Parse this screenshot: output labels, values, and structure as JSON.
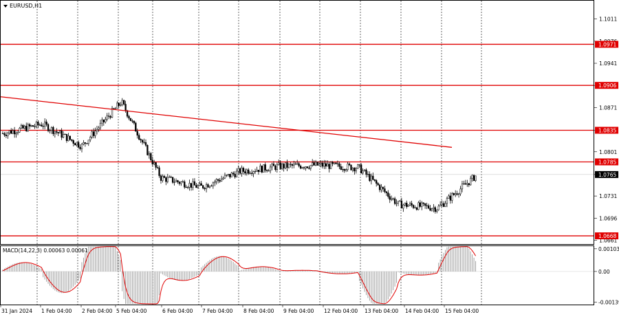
{
  "chart_data": [
    {
      "type": "candlestick",
      "symbol_label": "EURUSD,H1",
      "timeframe": "H1",
      "ylim": [
        1.0655,
        1.104
      ],
      "price_ticks": [
        1.1011,
        1.0976,
        1.0941,
        1.0906,
        1.0871,
        1.0835,
        1.0801,
        1.0765,
        1.0731,
        1.0696,
        1.0661
      ],
      "price_tick_labels": [
        "1.1011",
        "1.0976",
        "1.0941",
        "1.0906",
        "1.0871",
        "1.0835",
        "1.0801",
        "1.0765",
        "1.0731",
        "1.0696",
        "1.0661"
      ],
      "horizontal_levels": [
        {
          "value": 1.0971,
          "label": "1.0971",
          "color": "#e00000"
        },
        {
          "value": 1.0906,
          "label": "1.0906",
          "color": "#e00000"
        },
        {
          "value": 1.0835,
          "label": "1.0835",
          "color": "#e00000"
        },
        {
          "value": 1.0785,
          "label": "1.0785",
          "color": "#e00000"
        },
        {
          "value": 1.0668,
          "label": "1.0668",
          "color": "#e00000"
        }
      ],
      "trendline": {
        "from": {
          "time": "31 Jan 2024 00:00",
          "price": 1.0888
        },
        "to": {
          "time": "14 Feb 16:00",
          "price": 1.0808
        },
        "color": "#e00000"
      },
      "current_price": {
        "value": 1.0765,
        "label": "1.0765"
      },
      "time_labels": [
        "31 Jan 2024",
        "1 Feb 04:00",
        "2 Feb 04:00",
        "5 Feb 04:00",
        "6 Feb 04:00",
        "7 Feb 04:00",
        "8 Feb 04:00",
        "9 Feb 04:00",
        "12 Feb 04:00",
        "13 Feb 04:00",
        "14 Feb 04:00",
        "15 Feb 04:00"
      ],
      "session_closes": [
        {
          "time": "31 Jan 2024",
          "close": 1.0845
        },
        {
          "time": "1 Feb 04:00",
          "close": 1.081
        },
        {
          "time": "2 Feb 04:00",
          "close": 1.088
        },
        {
          "time": "5 Feb 04:00",
          "close": 1.076
        },
        {
          "time": "6 Feb 04:00",
          "close": 1.0745
        },
        {
          "time": "7 Feb 04:00",
          "close": 1.077
        },
        {
          "time": "8 Feb 04:00",
          "close": 1.0778
        },
        {
          "time": "9 Feb 04:00",
          "close": 1.078
        },
        {
          "time": "12 Feb 04:00",
          "close": 1.0776
        },
        {
          "time": "13 Feb 04:00",
          "close": 1.0718
        },
        {
          "time": "14 Feb 04:00",
          "close": 1.0712
        },
        {
          "time": "15 Feb 04:00",
          "close": 1.0765
        }
      ],
      "colors": {
        "candle": "#000000",
        "levels": "#e00000",
        "grid": "#000000",
        "label_bg": "#e00000",
        "label_text": "#ffffff"
      }
    },
    {
      "type": "macd",
      "label": "MACD(14,22,3) 0.00063 0.00061",
      "ylim": [
        -0.0015,
        0.00115
      ],
      "y_ticks": [
        0.00103,
        0.0,
        -0.00139
      ],
      "y_tick_labels": [
        "0.00103",
        "0.00",
        "-0.00139"
      ],
      "histogram_color": "#a0a0a0",
      "signal_color": "#e00000"
    }
  ]
}
